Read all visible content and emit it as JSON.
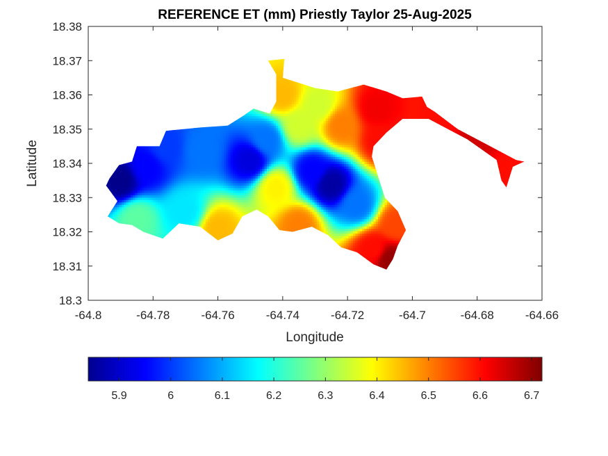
{
  "chart_data": {
    "type": "heatmap",
    "title": "REFERENCE ET (mm) Priestly Taylor 25-Aug-2025",
    "xlabel": "Longitude",
    "ylabel": "Latitude",
    "xlim": [
      -64.8,
      -64.66
    ],
    "ylim": [
      18.3,
      18.38
    ],
    "xticks": [
      -64.8,
      -64.78,
      -64.76,
      -64.74,
      -64.72,
      -64.7,
      -64.68,
      -64.66
    ],
    "xtick_labels": [
      "-64.8",
      "-64.78",
      "-64.76",
      "-64.74",
      "-64.72",
      "-64.7",
      "-64.68",
      "-64.66"
    ],
    "yticks": [
      18.3,
      18.31,
      18.32,
      18.33,
      18.34,
      18.35,
      18.36,
      18.37,
      18.38
    ],
    "ytick_labels": [
      "18.3",
      "18.31",
      "18.32",
      "18.33",
      "18.34",
      "18.35",
      "18.36",
      "18.37",
      "18.38"
    ],
    "grid": false,
    "colormap": "jet",
    "colorbar": {
      "orientation": "horizontal",
      "placement": "bottom",
      "range": [
        5.84,
        6.72
      ],
      "ticks": [
        5.9,
        6.0,
        6.1,
        6.2,
        6.3,
        6.4,
        6.5,
        6.6,
        6.7
      ],
      "tick_labels": [
        "5.9",
        "6",
        "6.1",
        "6.2",
        "6.3",
        "6.4",
        "6.5",
        "6.6",
        "6.7"
      ]
    },
    "region_outline": [
      [
        -64.7935,
        18.3355
      ],
      [
        -64.7905,
        18.3395
      ],
      [
        -64.7865,
        18.3405
      ],
      [
        -64.785,
        18.345
      ],
      [
        -64.778,
        18.345
      ],
      [
        -64.776,
        18.3495
      ],
      [
        -64.765,
        18.3505
      ],
      [
        -64.757,
        18.351
      ],
      [
        -64.752,
        18.354
      ],
      [
        -64.749,
        18.356
      ],
      [
        -64.744,
        18.3545
      ],
      [
        -64.742,
        18.358
      ],
      [
        -64.742,
        18.366
      ],
      [
        -64.7445,
        18.37
      ],
      [
        -64.7395,
        18.3705
      ],
      [
        -64.74,
        18.365
      ],
      [
        -64.73,
        18.362
      ],
      [
        -64.723,
        18.361
      ],
      [
        -64.715,
        18.363
      ],
      [
        -64.708,
        18.361
      ],
      [
        -64.703,
        18.359
      ],
      [
        -64.697,
        18.3595
      ],
      [
        -64.6955,
        18.3565
      ],
      [
        -64.693,
        18.355
      ],
      [
        -64.686,
        18.35
      ],
      [
        -64.678,
        18.346
      ],
      [
        -64.672,
        18.343
      ],
      [
        -64.668,
        18.341
      ],
      [
        -64.6655,
        18.3405
      ],
      [
        -64.669,
        18.339
      ],
      [
        -64.671,
        18.333
      ],
      [
        -64.6725,
        18.335
      ],
      [
        -64.674,
        18.341
      ],
      [
        -64.683,
        18.347
      ],
      [
        -64.695,
        18.353
      ],
      [
        -64.703,
        18.353
      ],
      [
        -64.708,
        18.349
      ],
      [
        -64.712,
        18.345
      ],
      [
        -64.7125,
        18.342
      ],
      [
        -64.7085,
        18.33
      ],
      [
        -64.7045,
        18.326
      ],
      [
        -64.702,
        18.3205
      ],
      [
        -64.7045,
        18.316
      ],
      [
        -64.706,
        18.312
      ],
      [
        -64.708,
        18.309
      ],
      [
        -64.712,
        18.3105
      ],
      [
        -64.717,
        18.314
      ],
      [
        -64.722,
        18.3155
      ],
      [
        -64.726,
        18.319
      ],
      [
        -64.731,
        18.3215
      ],
      [
        -64.737,
        18.32
      ],
      [
        -64.741,
        18.3205
      ],
      [
        -64.7445,
        18.3245
      ],
      [
        -64.748,
        18.3265
      ],
      [
        -64.7525,
        18.3245
      ],
      [
        -64.7555,
        18.3195
      ],
      [
        -64.76,
        18.3175
      ],
      [
        -64.7655,
        18.3215
      ],
      [
        -64.772,
        18.3225
      ],
      [
        -64.777,
        18.318
      ],
      [
        -64.783,
        18.32
      ],
      [
        -64.7865,
        18.322
      ],
      [
        -64.7905,
        18.3225
      ],
      [
        -64.794,
        18.3245
      ],
      [
        -64.791,
        18.329
      ],
      [
        -64.7945,
        18.3335
      ]
    ],
    "value_points": [
      {
        "lon": -64.79,
        "lat": 18.335,
        "value": 5.85
      },
      {
        "lon": -64.782,
        "lat": 18.339,
        "value": 5.95
      },
      {
        "lon": -64.776,
        "lat": 18.345,
        "value": 6.0
      },
      {
        "lon": -64.765,
        "lat": 18.344,
        "value": 6.05
      },
      {
        "lon": -64.75,
        "lat": 18.341,
        "value": 5.92
      },
      {
        "lon": -64.745,
        "lat": 18.347,
        "value": 6.05
      },
      {
        "lon": -64.725,
        "lat": 18.334,
        "value": 5.87
      },
      {
        "lon": -64.731,
        "lat": 18.338,
        "value": 5.95
      },
      {
        "lon": -64.717,
        "lat": 18.328,
        "value": 6.05
      },
      {
        "lon": -64.785,
        "lat": 18.324,
        "value": 6.25
      },
      {
        "lon": -64.77,
        "lat": 18.326,
        "value": 6.15
      },
      {
        "lon": -64.76,
        "lat": 18.321,
        "value": 6.45
      },
      {
        "lon": -64.742,
        "lat": 18.333,
        "value": 6.4
      },
      {
        "lon": -64.735,
        "lat": 18.351,
        "value": 6.35
      },
      {
        "lon": -64.74,
        "lat": 18.36,
        "value": 6.45
      },
      {
        "lon": -64.729,
        "lat": 18.357,
        "value": 6.35
      },
      {
        "lon": -64.722,
        "lat": 18.351,
        "value": 6.5
      },
      {
        "lon": -64.711,
        "lat": 18.356,
        "value": 6.62
      },
      {
        "lon": -64.71,
        "lat": 18.347,
        "value": 6.6
      },
      {
        "lon": -64.705,
        "lat": 18.322,
        "value": 6.55
      },
      {
        "lon": -64.707,
        "lat": 18.312,
        "value": 6.7
      },
      {
        "lon": -64.712,
        "lat": 18.315,
        "value": 6.6
      },
      {
        "lon": -64.735,
        "lat": 18.322,
        "value": 6.5
      },
      {
        "lon": -64.69,
        "lat": 18.354,
        "value": 6.6
      },
      {
        "lon": -64.68,
        "lat": 18.348,
        "value": 6.65
      },
      {
        "lon": -64.67,
        "lat": 18.338,
        "value": 6.6
      }
    ]
  }
}
